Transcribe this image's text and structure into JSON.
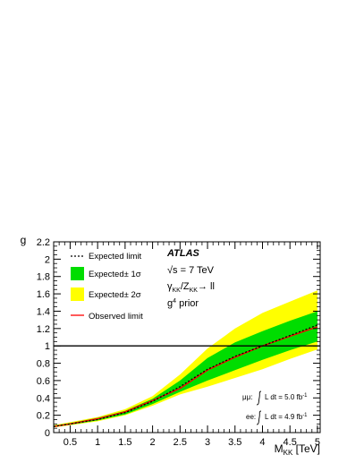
{
  "chart_data": {
    "type": "area",
    "xlabel_main": "M",
    "xlabel_sub": "KK",
    "xlabel_unit": " [TeV]",
    "ylabel": "g",
    "xlim": [
      0.2,
      5.05
    ],
    "ylim": [
      0,
      2.2
    ],
    "x_ticks": [
      "0.5",
      "1",
      "1.5",
      "2",
      "2.5",
      "3",
      "3.5",
      "4",
      "4.5",
      "5"
    ],
    "y_ticks": [
      "0",
      "0.2",
      "0.4",
      "0.6",
      "0.8",
      "1",
      "1.2",
      "1.4",
      "1.6",
      "1.8",
      "2",
      "2.2"
    ],
    "reference_line": 1,
    "colors": {
      "band_2sigma": "#ffff00",
      "band_1sigma": "#00dd00",
      "observed": "#ff0000",
      "expected": "#000000"
    },
    "legend": {
      "expected": "Expected limit",
      "one_sigma": "Expected± 1σ",
      "two_sigma": "Expected± 2σ",
      "observed": "Observed limit"
    },
    "annotations": {
      "experiment": "ATLAS",
      "energy": "√s = 7 TeV",
      "process_a": "γ",
      "process_a_sub": "KK",
      "process_b": "/Z",
      "process_b_sub": "KK",
      "process_c": "→ ll",
      "prior_a": "g",
      "prior_sup": "4",
      "prior_b": " prior",
      "lumi_mumu": "μμ:",
      "lumi_ee": "ee:",
      "lumi_value_mumu": "L dt = 5.0 fb",
      "lumi_value_ee": "L dt = 4.9 fb",
      "lumi_sup": "-1"
    },
    "series": [
      {
        "name": "Expected limit",
        "x": [
          0.2,
          0.5,
          1.0,
          1.5,
          2.0,
          2.5,
          3.0,
          3.5,
          4.0,
          4.5,
          5.0
        ],
        "values": [
          0.07,
          0.1,
          0.15,
          0.23,
          0.36,
          0.53,
          0.73,
          0.88,
          1.0,
          1.12,
          1.24
        ]
      },
      {
        "name": "Observed limit",
        "x": [
          0.2,
          0.5,
          1.0,
          1.5,
          2.0,
          2.5,
          3.0,
          3.5,
          4.0,
          4.5,
          5.0
        ],
        "values": [
          0.07,
          0.1,
          0.16,
          0.24,
          0.37,
          0.51,
          0.72,
          0.87,
          1.0,
          1.11,
          1.22
        ]
      },
      {
        "name": "Expected± 1σ",
        "x": [
          0.2,
          0.5,
          1.0,
          1.5,
          2.0,
          2.5,
          3.0,
          3.5,
          4.0,
          4.5,
          5.0
        ],
        "lower": [
          0.065,
          0.09,
          0.14,
          0.21,
          0.33,
          0.47,
          0.6,
          0.72,
          0.84,
          0.95,
          1.05
        ],
        "upper": [
          0.08,
          0.11,
          0.17,
          0.25,
          0.39,
          0.6,
          0.86,
          1.04,
          1.17,
          1.29,
          1.4
        ]
      },
      {
        "name": "Expected± 2σ",
        "x": [
          0.2,
          0.5,
          1.0,
          1.5,
          2.0,
          2.5,
          3.0,
          3.5,
          4.0,
          4.5,
          5.0
        ],
        "lower": [
          0.06,
          0.085,
          0.13,
          0.2,
          0.31,
          0.44,
          0.53,
          0.63,
          0.73,
          0.85,
          0.96
        ],
        "upper": [
          0.085,
          0.12,
          0.18,
          0.27,
          0.42,
          0.67,
          0.97,
          1.2,
          1.38,
          1.51,
          1.64
        ]
      }
    ]
  }
}
